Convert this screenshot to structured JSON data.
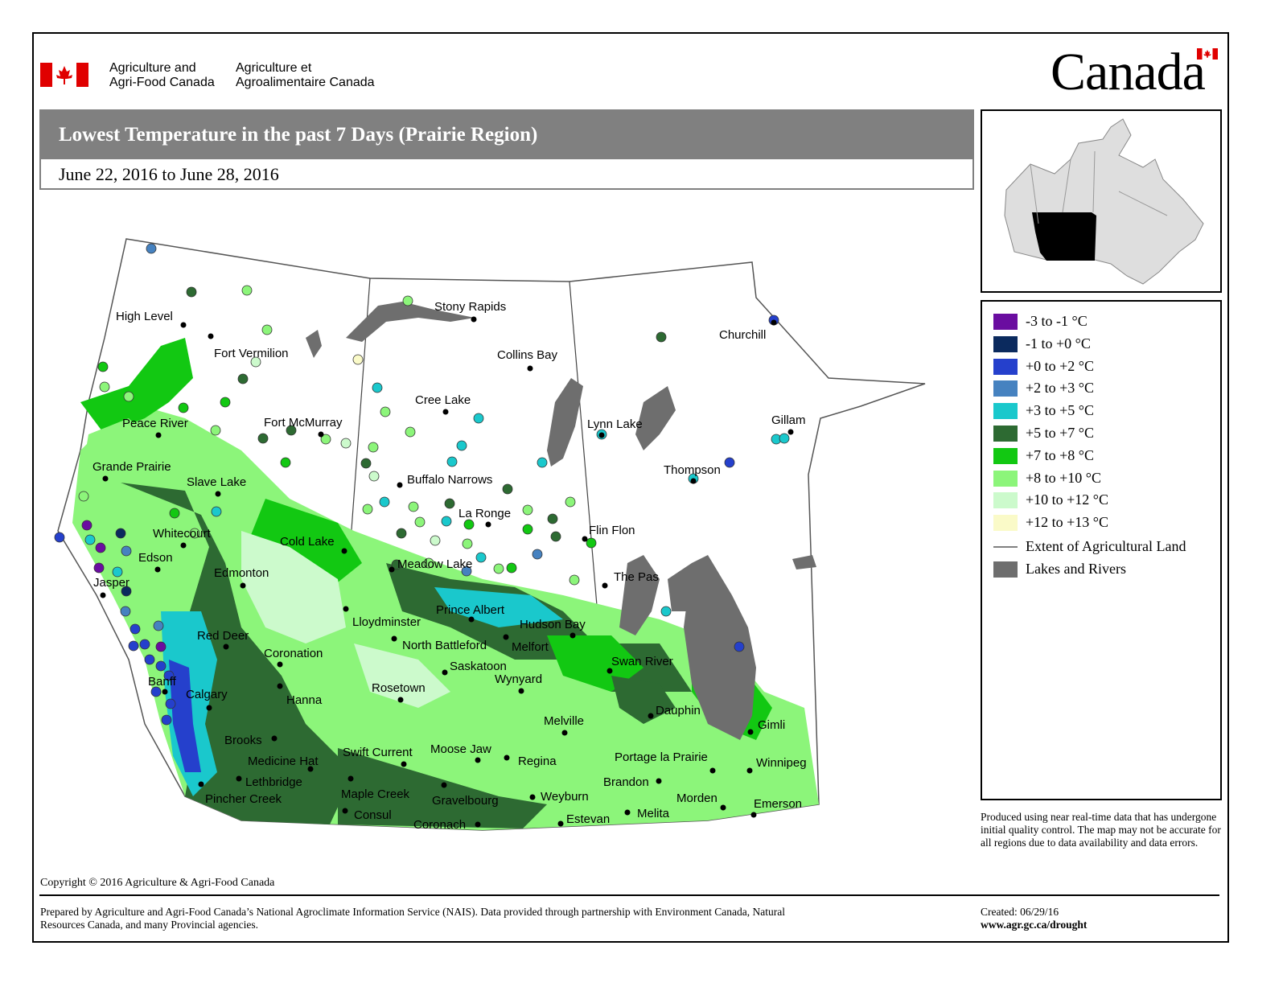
{
  "header": {
    "dept_en_line1": "Agriculture and",
    "dept_en_line2": "Agri-Food Canada",
    "dept_fr_line1": "Agriculture et",
    "dept_fr_line2": "Agroalimentaire Canada",
    "wordmark": "Canada"
  },
  "title": "Lowest Temperature in the past 7 Days (Prairie Region)",
  "subtitle": "June 22, 2016 to June 28, 2016",
  "legend": {
    "items": [
      {
        "label": "-3 to -1 °C",
        "color": "#6a0da0"
      },
      {
        "label": "-1 to +0 °C",
        "color": "#0b2a5e"
      },
      {
        "label": "+0 to +2 °C",
        "color": "#2540cc"
      },
      {
        "label": "+2 to +3 °C",
        "color": "#4682c0"
      },
      {
        "label": "+3 to +5 °C",
        "color": "#1ac8cc"
      },
      {
        "label": "+5 to +7 °C",
        "color": "#2d6a32"
      },
      {
        "label": "+7 to +8 °C",
        "color": "#12c812"
      },
      {
        "label": "+8 to +10 °C",
        "color": "#8cf57a"
      },
      {
        "label": "+10 to +12 °C",
        "color": "#ccfacc"
      },
      {
        "label": "+12 to +13 °C",
        "color": "#fafac8"
      }
    ],
    "ag_land_label": "Extent of Agricultural Land",
    "lakes_label": "Lakes and Rivers",
    "lakes_color": "#6e6e6e"
  },
  "cities": [
    {
      "name": "High Level"
    },
    {
      "name": "Fort Vermilion"
    },
    {
      "name": "Peace River"
    },
    {
      "name": "Fort McMurray"
    },
    {
      "name": "Grande Prairie"
    },
    {
      "name": "Slave Lake"
    },
    {
      "name": "Whitecourt"
    },
    {
      "name": "Edson"
    },
    {
      "name": "Jasper"
    },
    {
      "name": "Edmonton"
    },
    {
      "name": "Cold Lake"
    },
    {
      "name": "Red Deer"
    },
    {
      "name": "Coronation"
    },
    {
      "name": "Banff"
    },
    {
      "name": "Calgary"
    },
    {
      "name": "Hanna"
    },
    {
      "name": "Brooks"
    },
    {
      "name": "Medicine Hat"
    },
    {
      "name": "Lethbridge"
    },
    {
      "name": "Pincher Creek"
    },
    {
      "name": "Stony Rapids"
    },
    {
      "name": "Collins Bay"
    },
    {
      "name": "Cree Lake"
    },
    {
      "name": "Buffalo Narrows"
    },
    {
      "name": "La Ronge"
    },
    {
      "name": "Meadow Lake"
    },
    {
      "name": "Lloydminster"
    },
    {
      "name": "Prince Albert"
    },
    {
      "name": "North Battleford"
    },
    {
      "name": "Saskatoon"
    },
    {
      "name": "Hudson Bay"
    },
    {
      "name": "Melfort"
    },
    {
      "name": "Wynyard"
    },
    {
      "name": "Rosetown"
    },
    {
      "name": "Melville"
    },
    {
      "name": "Swift Current"
    },
    {
      "name": "Moose Jaw"
    },
    {
      "name": "Regina"
    },
    {
      "name": "Maple Creek"
    },
    {
      "name": "Gravelbourg"
    },
    {
      "name": "Weyburn"
    },
    {
      "name": "Consul"
    },
    {
      "name": "Coronach"
    },
    {
      "name": "Estevan"
    },
    {
      "name": "Churchill"
    },
    {
      "name": "Lynn Lake"
    },
    {
      "name": "Gillam"
    },
    {
      "name": "Thompson"
    },
    {
      "name": "Flin Flon"
    },
    {
      "name": "The Pas"
    },
    {
      "name": "Swan River"
    },
    {
      "name": "Dauphin"
    },
    {
      "name": "Gimli"
    },
    {
      "name": "Portage la Prairie"
    },
    {
      "name": "Winnipeg"
    },
    {
      "name": "Brandon"
    },
    {
      "name": "Morden"
    },
    {
      "name": "Melita"
    },
    {
      "name": "Emerson"
    }
  ],
  "note": "Produced using near real-time data that has undergone initial quality control.  The map may not be accurate for all regions due to data availability and data errors.",
  "copyright": "Copyright © 2016 Agriculture & Agri-Food Canada",
  "prepared": "Prepared by Agriculture and Agri-Food Canada’s National Agroclimate Information Service (NAIS).   Data provided through partnership with Environment Canada, Natural Resources Canada, and many Provincial agencies.",
  "created": "Created: 06/29/16",
  "url": "www.agr.gc.ca/drought"
}
